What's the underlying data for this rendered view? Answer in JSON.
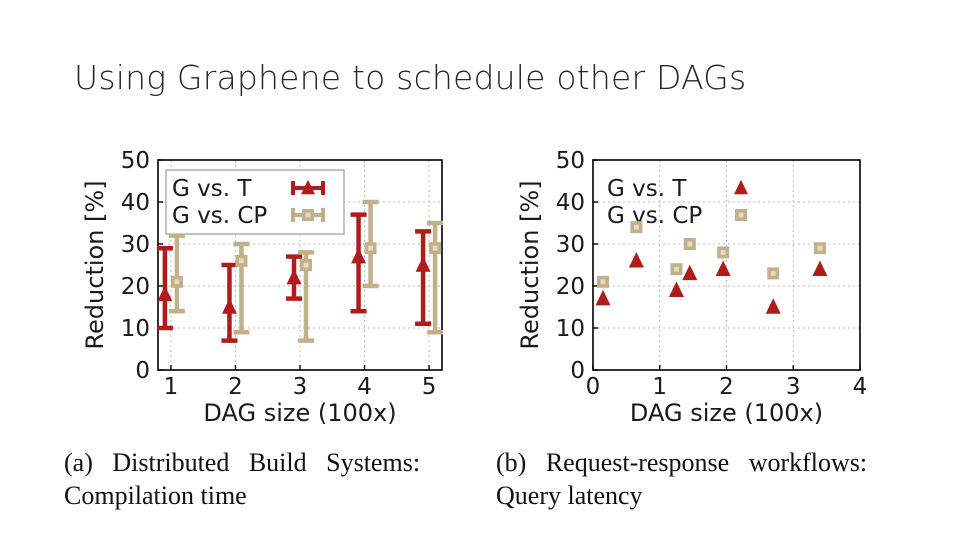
{
  "slide": {
    "title": "Using Graphene to schedule other DAGs"
  },
  "captions": {
    "a_line1": "(a)   Distributed   Build   Systems:",
    "a_line2": "Compilation time",
    "b_line1": "(b)   Request-response   workflows:",
    "b_line2": "Query latency"
  },
  "colors": {
    "t_series": "#b01c1c",
    "cp_series": "#c2b08a",
    "axis": "#000000",
    "grid": "#bbbbbb"
  },
  "chart_data": [
    {
      "type": "scatter",
      "title": "",
      "xlabel": "DAG size (100x)",
      "ylabel": "Reduction [%]",
      "xlim": [
        0.8,
        5.2
      ],
      "ylim": [
        0,
        50
      ],
      "xticks": [
        1,
        2,
        3,
        4,
        5
      ],
      "yticks": [
        0,
        10,
        20,
        30,
        40,
        50
      ],
      "grid": true,
      "legend_position": "top-left",
      "error_bars": true,
      "series": [
        {
          "name": "G vs. T",
          "marker": "triangle",
          "points": [
            {
              "x": 1,
              "y": 18,
              "low": 10,
              "high": 29
            },
            {
              "x": 2,
              "y": 15,
              "low": 7,
              "high": 25
            },
            {
              "x": 3,
              "y": 22,
              "low": 17,
              "high": 27
            },
            {
              "x": 4,
              "y": 27,
              "low": 14,
              "high": 37
            },
            {
              "x": 5,
              "y": 25,
              "low": 11,
              "high": 33
            }
          ]
        },
        {
          "name": "G vs. CP",
          "marker": "square",
          "points": [
            {
              "x": 1,
              "y": 21,
              "low": 14,
              "high": 32
            },
            {
              "x": 2,
              "y": 26,
              "low": 9,
              "high": 30
            },
            {
              "x": 3,
              "y": 25,
              "low": 7,
              "high": 28
            },
            {
              "x": 4,
              "y": 29,
              "low": 20,
              "high": 40
            },
            {
              "x": 5,
              "y": 29,
              "low": 9,
              "high": 35
            }
          ]
        }
      ]
    },
    {
      "type": "scatter",
      "title": "",
      "xlabel": "DAG size (100x)",
      "ylabel": "Reduction [%]",
      "xlim": [
        0,
        4
      ],
      "ylim": [
        0,
        50
      ],
      "xticks": [
        0,
        1,
        2,
        3,
        4
      ],
      "yticks": [
        0,
        10,
        20,
        30,
        40,
        50
      ],
      "grid": true,
      "legend_position": "top-left",
      "error_bars": false,
      "series": [
        {
          "name": "G vs. T",
          "marker": "triangle",
          "points": [
            {
              "x": 0.15,
              "y": 17
            },
            {
              "x": 0.65,
              "y": 26
            },
            {
              "x": 1.25,
              "y": 19
            },
            {
              "x": 1.45,
              "y": 23
            },
            {
              "x": 1.95,
              "y": 24
            },
            {
              "x": 2.7,
              "y": 15
            },
            {
              "x": 3.4,
              "y": 24
            }
          ]
        },
        {
          "name": "G vs. CP",
          "marker": "square",
          "points": [
            {
              "x": 0.15,
              "y": 21
            },
            {
              "x": 0.65,
              "y": 34
            },
            {
              "x": 1.25,
              "y": 24
            },
            {
              "x": 1.45,
              "y": 30
            },
            {
              "x": 1.95,
              "y": 28
            },
            {
              "x": 2.7,
              "y": 23
            },
            {
              "x": 3.4,
              "y": 29
            }
          ]
        }
      ]
    }
  ]
}
